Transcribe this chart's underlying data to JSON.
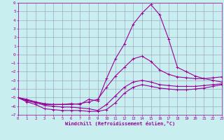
{
  "xlabel": "Windchill (Refroidissement éolien,°C)",
  "xlim": [
    0,
    23
  ],
  "ylim": [
    -7,
    6
  ],
  "yticks": [
    -7,
    -6,
    -5,
    -4,
    -3,
    -2,
    -1,
    0,
    1,
    2,
    3,
    4,
    5,
    6
  ],
  "xticks": [
    0,
    1,
    2,
    3,
    4,
    5,
    6,
    7,
    8,
    9,
    10,
    11,
    12,
    13,
    14,
    15,
    16,
    17,
    18,
    19,
    20,
    21,
    22,
    23
  ],
  "bg_color": "#c8eef0",
  "grid_color": "#9999bb",
  "line_color": "#990099",
  "curves": [
    [
      -5.0,
      -5.5,
      -5.8,
      -6.3,
      -6.4,
      -6.5,
      -6.5,
      -6.5,
      -6.6,
      -6.6,
      -6.4,
      -5.6,
      -4.5,
      -3.8,
      -3.5,
      -3.7,
      -3.9,
      -4.0,
      -4.1,
      -4.1,
      -4.0,
      -3.9,
      -3.7,
      -3.5
    ],
    [
      -5.0,
      -5.4,
      -5.6,
      -5.9,
      -6.0,
      -6.1,
      -6.1,
      -6.2,
      -6.3,
      -6.5,
      -5.8,
      -4.8,
      -3.8,
      -3.2,
      -3.0,
      -3.2,
      -3.5,
      -3.6,
      -3.7,
      -3.7,
      -3.7,
      -3.6,
      -3.5,
      -3.4
    ],
    [
      -5.0,
      -5.3,
      -5.5,
      -5.7,
      -5.8,
      -5.8,
      -5.8,
      -5.7,
      -5.5,
      -5.2,
      -3.8,
      -2.5,
      -1.5,
      -0.5,
      -0.2,
      -0.8,
      -1.8,
      -2.3,
      -2.6,
      -2.7,
      -2.8,
      -2.8,
      -2.7,
      -2.6
    ],
    [
      -5.0,
      -5.2,
      -5.5,
      -5.8,
      -5.8,
      -5.8,
      -5.7,
      -5.8,
      -5.2,
      -5.4,
      -2.8,
      -0.5,
      1.2,
      3.5,
      4.8,
      5.8,
      4.6,
      1.8,
      -1.5,
      -2.0,
      -2.5,
      -2.8,
      -3.0,
      -3.2
    ]
  ]
}
